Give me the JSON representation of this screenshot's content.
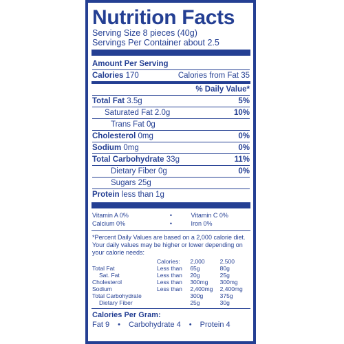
{
  "title": "Nutrition Facts",
  "serving_size": "Serving Size 8 pieces (40g)",
  "servings_per_container": "Servings Per Container about 2.5",
  "amount_per_serving": "Amount Per Serving",
  "calories_label": "Calories",
  "calories_value": "170",
  "calories_from_fat": "Calories from Fat 35",
  "daily_value_header": "% Daily Value*",
  "nutrients": [
    {
      "name": "Total Fat",
      "amount": "3.5g",
      "dv": "5%"
    },
    {
      "name": "Saturated Fat",
      "amount": "2.0g",
      "dv": "10%"
    },
    {
      "name": "Trans Fat",
      "amount": "0g",
      "dv": ""
    },
    {
      "name": "Cholesterol",
      "amount": "0mg",
      "dv": "0%"
    },
    {
      "name": "Sodium",
      "amount": "0mg",
      "dv": "0%"
    },
    {
      "name": "Total Carbohydrate",
      "amount": "33g",
      "dv": "11%"
    },
    {
      "name": "Dietary Fiber",
      "amount": "0g",
      "dv": "0%"
    },
    {
      "name": "Sugars",
      "amount": "25g",
      "dv": ""
    },
    {
      "name": "Protein",
      "amount": "less than 1g",
      "dv": ""
    }
  ],
  "vitamins": [
    {
      "left": "Vitamin A 0%",
      "right": "Vitamin C 0%"
    },
    {
      "left": "Calcium 0%",
      "right": "Iron 0%"
    }
  ],
  "dot": "•",
  "footnote": "*Percent Daily Values are based on a 2,000 calorie diet. Your daily values may be higher or lower depending on your calorie needs:",
  "dv_table": {
    "header": [
      "",
      "Calories:",
      "2,000",
      "2,500"
    ],
    "rows": [
      [
        "Total Fat",
        "Less than",
        "65g",
        "80g"
      ],
      [
        "Sat. Fat",
        "Less than",
        "20g",
        "25g"
      ],
      [
        "Cholesterol",
        "Less than",
        "300mg",
        "300mg"
      ],
      [
        "Sodium",
        "Less than",
        "2,400mg",
        "2,400mg"
      ],
      [
        "Total Carbohydrate",
        "",
        "300g",
        "375g"
      ],
      [
        "Dietary Fiber",
        "",
        "25g",
        "30g"
      ]
    ]
  },
  "calories_per_gram": {
    "title": "Calories Per Gram:",
    "fat": "Fat 9",
    "carb": "Carbohydrate 4",
    "protein": "Protein 4"
  }
}
